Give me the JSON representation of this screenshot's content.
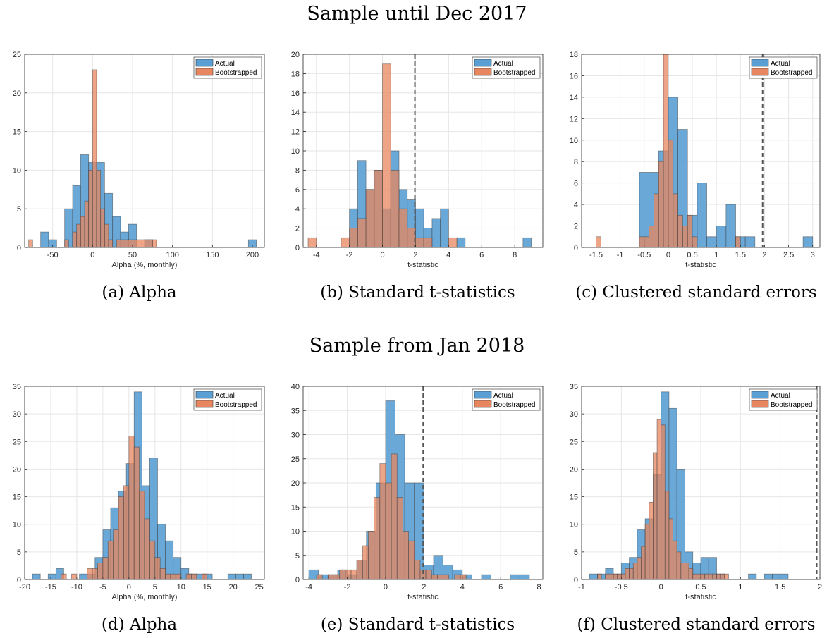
{
  "section_titles": [
    "Sample until Dec 2017",
    "Sample from Jan 2018"
  ],
  "captions": [
    "(a) Alpha",
    "(b) Standard t-statistics",
    "(c) Clustered standard errors",
    "(d) Alpha",
    "(e) Standard t-statistics",
    "(f) Clustered standard errors"
  ],
  "colors": {
    "actual": "#5a9fd4",
    "bootstrapped": "#e8875f",
    "overlap": "#9a5a4c"
  },
  "chart_data": [
    {
      "type": "bar",
      "title": "",
      "xlabel": "Alpha (%, monthly)",
      "xlim": [
        -85,
        215
      ],
      "ylim": [
        0,
        25
      ],
      "xticks": [
        -50,
        0,
        50,
        100,
        150,
        200
      ],
      "xticklabels": [
        "-50",
        "0",
        "50",
        "100",
        "150",
        "200"
      ],
      "yticks": [
        0,
        5,
        10,
        15,
        20,
        25
      ],
      "grid": true,
      "legend": "top-right",
      "series": [
        {
          "name": "Actual",
          "bin_edges": [
            -65,
            -55,
            -45,
            -35,
            -25,
            -15,
            -5,
            5,
            15,
            25,
            35,
            45,
            55,
            65,
            75,
            195,
            205
          ],
          "counts": [
            2,
            1,
            0,
            5,
            8,
            12,
            11,
            11,
            7,
            4,
            2,
            3,
            0,
            1,
            0,
            1
          ]
        },
        {
          "name": "Bootstrapped",
          "bin_edges": [
            -80,
            -75,
            -35,
            -30,
            -25,
            -20,
            -15,
            -10,
            -5,
            0,
            5,
            10,
            15,
            20,
            25,
            30,
            75,
            80
          ],
          "counts": [
            1,
            0,
            1,
            0,
            2,
            3,
            4,
            6,
            10,
            23,
            10,
            5,
            3,
            1,
            0,
            1,
            1
          ]
        }
      ]
    },
    {
      "type": "bar",
      "title": "",
      "xlabel": "t-statistic",
      "xlim": [
        -4.8,
        9.7
      ],
      "ylim": [
        0,
        20
      ],
      "xticks": [
        -4,
        -2,
        0,
        2,
        4,
        6,
        8
      ],
      "xticklabels": [
        "-4",
        "-2",
        "0",
        "2",
        "4",
        "6",
        "8"
      ],
      "yticks": [
        0,
        2,
        4,
        6,
        8,
        10,
        12,
        14,
        16,
        18,
        20
      ],
      "grid": true,
      "legend": "top-right",
      "vline": 1.96,
      "series": [
        {
          "name": "Actual",
          "bin_edges": [
            -2.0,
            -1.5,
            -1.0,
            -0.5,
            0,
            0.5,
            1.0,
            1.5,
            2.0,
            2.5,
            3.0,
            3.5,
            4.0,
            4.5,
            5.0,
            8.5,
            9.0
          ],
          "counts": [
            4,
            9,
            6,
            8,
            4,
            10,
            6,
            5,
            4,
            2,
            3,
            4,
            0,
            1,
            0,
            1
          ]
        },
        {
          "name": "Bootstrapped",
          "bin_edges": [
            -4.5,
            -4.0,
            -2.5,
            -2.0,
            -1.5,
            -1.0,
            -0.5,
            0,
            0.5,
            1.0,
            1.5,
            2.0,
            2.5,
            3.0,
            4.0,
            4.5
          ],
          "counts": [
            1,
            0,
            1,
            2,
            3,
            6,
            8,
            19,
            8,
            4,
            2,
            1,
            1,
            0,
            1
          ]
        }
      ]
    },
    {
      "type": "bar",
      "title": "",
      "xlabel": "t-statistic",
      "xlim": [
        -1.8,
        3.15
      ],
      "ylim": [
        0,
        18
      ],
      "xticks": [
        -1.5,
        -1,
        -0.5,
        0,
        0.5,
        1,
        1.5,
        2,
        2.5,
        3
      ],
      "xticklabels": [
        "-1.5",
        "-1",
        "-0.5",
        "0",
        "0.5",
        "1",
        "1.5",
        "2",
        "2.5",
        "3"
      ],
      "yticks": [
        0,
        2,
        4,
        6,
        8,
        10,
        12,
        14,
        16,
        18
      ],
      "grid": true,
      "legend": "top-right",
      "vline": 1.96,
      "series": [
        {
          "name": "Actual",
          "bin_edges": [
            -0.6,
            -0.4,
            -0.2,
            0,
            0.2,
            0.4,
            0.6,
            0.8,
            1.0,
            1.2,
            1.4,
            1.6,
            1.8,
            2.8,
            3.0
          ],
          "counts": [
            7,
            7,
            9,
            14,
            11,
            3,
            6,
            1,
            2,
            4,
            1,
            1,
            0,
            1
          ]
        },
        {
          "name": "Bootstrapped",
          "bin_edges": [
            -1.5,
            -1.4,
            -0.6,
            -0.5,
            -0.4,
            -0.3,
            -0.2,
            -0.1,
            0,
            0.1,
            0.2,
            0.3,
            0.4,
            0.5,
            0.6,
            1.4,
            1.5
          ],
          "counts": [
            1,
            0,
            1,
            1,
            2,
            5,
            8,
            18,
            10,
            5,
            3,
            2,
            3,
            1,
            0,
            1
          ]
        }
      ]
    },
    {
      "type": "bar",
      "title": "",
      "xlabel": "Alpha (%, monthly)",
      "xlim": [
        -20,
        26
      ],
      "ylim": [
        0,
        35
      ],
      "xticks": [
        -20,
        -15,
        -10,
        -5,
        0,
        5,
        10,
        15,
        20,
        25
      ],
      "xticklabels": [
        "-20",
        "-15",
        "-10",
        "-5",
        "0",
        "5",
        "10",
        "15",
        "20",
        "25"
      ],
      "yticks": [
        0,
        5,
        10,
        15,
        20,
        25,
        30,
        35
      ],
      "grid": true,
      "legend": "top-right",
      "series": [
        {
          "name": "Actual",
          "bin_edges": [
            -18.5,
            -17,
            -15.5,
            -14,
            -12.5,
            -11,
            -9.5,
            -8,
            -6.5,
            -5,
            -3.5,
            -2,
            -0.5,
            1,
            2.5,
            4,
            5.5,
            7,
            8.5,
            10,
            11.5,
            13,
            14.5,
            16,
            17.5,
            19,
            20.5,
            22,
            23.5
          ],
          "counts": [
            1,
            0,
            1,
            2,
            0,
            0,
            1,
            1,
            4,
            9,
            13,
            16,
            21,
            34,
            17,
            22,
            10,
            7,
            4,
            2,
            1,
            1,
            1,
            0,
            0,
            1,
            1,
            1
          ]
        },
        {
          "name": "Bootstrapped",
          "bin_edges": [
            -13,
            -12,
            -11,
            -10,
            -8,
            -7,
            -6,
            -5,
            -4,
            -3,
            -2,
            -1,
            0,
            1,
            2,
            3,
            4,
            5,
            6,
            7,
            8,
            9,
            10,
            11,
            12,
            13,
            14,
            15
          ],
          "counts": [
            1,
            0,
            1,
            0,
            2,
            2,
            3,
            4,
            7,
            9,
            15,
            17,
            26,
            24,
            16,
            11,
            7,
            4,
            2,
            1,
            1,
            1,
            0,
            1,
            1,
            0,
            1
          ]
        }
      ]
    },
    {
      "type": "bar",
      "title": "",
      "xlabel": "t-statistic",
      "xlim": [
        -4.3,
        8.2
      ],
      "ylim": [
        0,
        40
      ],
      "xticks": [
        -4,
        -2,
        0,
        2,
        4,
        6,
        8
      ],
      "xticklabels": [
        "-4",
        "-2",
        "0",
        "2",
        "4",
        "6",
        "8"
      ],
      "yticks": [
        0,
        5,
        10,
        15,
        20,
        25,
        30,
        35,
        40
      ],
      "grid": true,
      "legend": "top-right",
      "vline": 1.96,
      "series": [
        {
          "name": "Actual",
          "bin_edges": [
            -4.0,
            -3.5,
            -3.0,
            -2.5,
            -2.0,
            -1.5,
            -1.0,
            -0.5,
            0,
            0.5,
            1.0,
            1.5,
            2.0,
            2.5,
            3.0,
            3.5,
            4.0,
            4.5,
            5.0,
            5.5,
            6.5,
            7.0,
            7.5
          ],
          "counts": [
            2,
            1,
            1,
            2,
            1,
            4,
            10,
            20,
            37,
            30,
            20,
            20,
            3,
            5,
            3,
            2,
            1,
            0,
            1,
            0,
            1,
            1
          ]
        },
        {
          "name": "Bootstrapped",
          "bin_edges": [
            -3.6,
            -3.3,
            -3.0,
            -2.4,
            -2.1,
            -1.8,
            -1.5,
            -1.2,
            -0.9,
            -0.6,
            -0.3,
            0,
            0.3,
            0.6,
            0.9,
            1.2,
            1.5,
            1.8,
            2.1,
            2.4,
            2.7,
            3.0,
            3.3,
            3.6,
            3.9,
            4.2
          ],
          "counts": [
            1,
            0,
            1,
            2,
            2,
            2,
            4,
            7,
            10,
            17,
            24,
            20,
            26,
            17,
            10,
            8,
            4,
            2,
            2,
            1,
            1,
            1,
            0,
            1,
            1
          ]
        }
      ]
    },
    {
      "type": "bar",
      "title": "",
      "xlabel": "t-statistic",
      "xlim": [
        -1.0,
        2.0
      ],
      "ylim": [
        0,
        35
      ],
      "xticks": [
        -1,
        -0.5,
        0,
        0.5,
        1,
        1.5,
        2
      ],
      "xticklabels": [
        "-1",
        "-0.5",
        "0",
        "0.5",
        "1",
        "1.5",
        "2"
      ],
      "yticks": [
        0,
        5,
        10,
        15,
        20,
        25,
        30,
        35
      ],
      "grid": true,
      "legend": "top-right",
      "vline": 1.96,
      "series": [
        {
          "name": "Actual",
          "bin_edges": [
            -0.9,
            -0.8,
            -0.7,
            -0.6,
            -0.5,
            -0.4,
            -0.3,
            -0.2,
            -0.1,
            0,
            0.1,
            0.2,
            0.3,
            0.4,
            0.5,
            0.6,
            0.7,
            0.8,
            1.1,
            1.2,
            1.3,
            1.4,
            1.5,
            1.6
          ],
          "counts": [
            1,
            1,
            2,
            1,
            3,
            4,
            9,
            11,
            19,
            34,
            31,
            20,
            5,
            3,
            4,
            4,
            1,
            0,
            1,
            0,
            1,
            1,
            1
          ]
        },
        {
          "name": "Bootstrapped",
          "bin_edges": [
            -0.8,
            -0.75,
            -0.7,
            -0.6,
            -0.55,
            -0.5,
            -0.45,
            -0.4,
            -0.35,
            -0.3,
            -0.25,
            -0.2,
            -0.15,
            -0.1,
            -0.05,
            0,
            0.05,
            0.1,
            0.15,
            0.2,
            0.25,
            0.3,
            0.35,
            0.4,
            0.45,
            0.5,
            0.55,
            0.6,
            0.65,
            0.7,
            0.75,
            0.8,
            0.85
          ],
          "counts": [
            1,
            0,
            1,
            1,
            1,
            1,
            2,
            2,
            3,
            4,
            6,
            10,
            14,
            23,
            29,
            28,
            16,
            11,
            7,
            5,
            3,
            3,
            2,
            1,
            1,
            1,
            1,
            1,
            1,
            1,
            1,
            1
          ]
        }
      ]
    }
  ]
}
